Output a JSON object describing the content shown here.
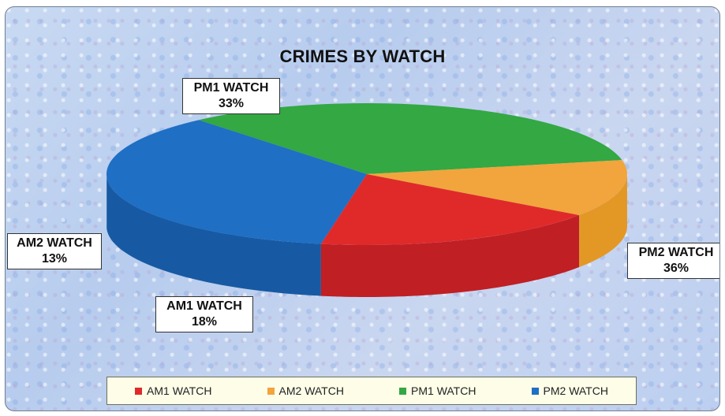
{
  "chart_data": {
    "type": "pie",
    "title": "CRIMES BY WATCH",
    "slices": [
      {
        "name": "PM1 WATCH",
        "pct_label": "33%",
        "value": 33,
        "color": "#33a843",
        "side": "#2a8a37"
      },
      {
        "name": "PM2 WATCH",
        "pct_label": "36%",
        "value": 36,
        "color": "#1f6fc4",
        "side": "#175aa3"
      },
      {
        "name": "AM1 WATCH",
        "pct_label": "18%",
        "value": 18,
        "color": "#e02a2a",
        "side": "#c01f24"
      },
      {
        "name": "AM2 WATCH",
        "pct_label": "13%",
        "value": 13,
        "color": "#f1a53c",
        "side": "#e39826"
      }
    ],
    "legend": [
      {
        "name": "AM1 WATCH",
        "color": "#e02a2a"
      },
      {
        "name": "AM2 WATCH",
        "color": "#f1a53c"
      },
      {
        "name": "PM1 WATCH",
        "color": "#33a843"
      },
      {
        "name": "PM2 WATCH",
        "color": "#1f6fc4"
      }
    ],
    "legend_position": "bottom"
  }
}
